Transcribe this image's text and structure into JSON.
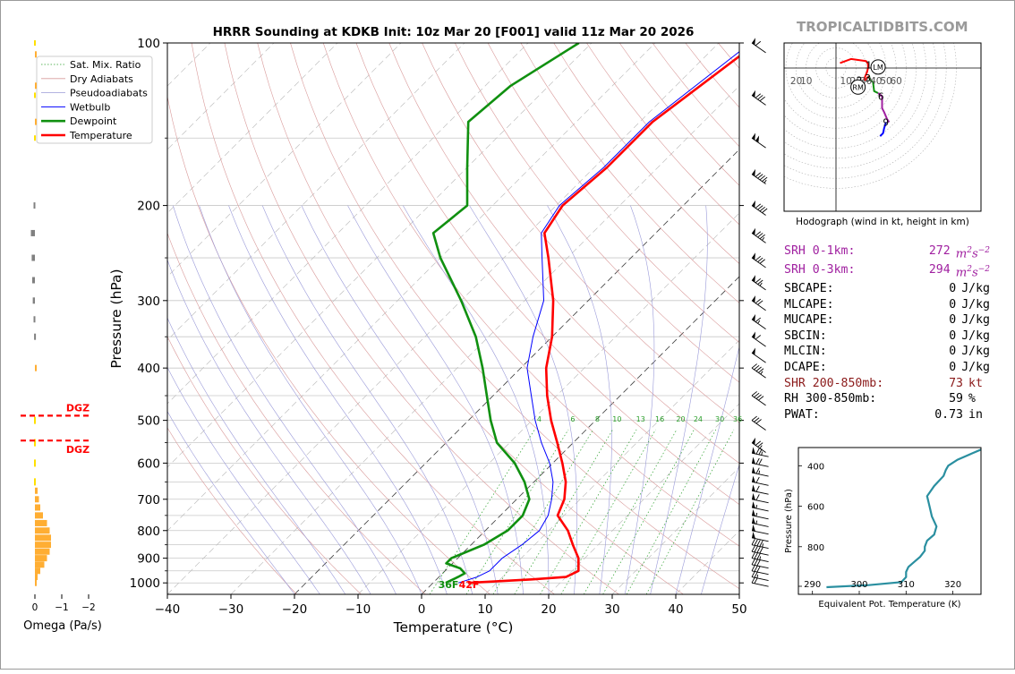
{
  "branding": "TROPICALTIDBITS.COM",
  "chart_data": {
    "type": "skew-t",
    "title": "HRRR Sounding at KDKB Init: 10z Mar 20 [F001] valid 11z Mar 20 2026",
    "xlabel": "Temperature (°C)",
    "ylabel": "Pressure (hPa)",
    "xlim": [
      -40,
      50
    ],
    "ylim": [
      1050,
      100
    ],
    "log_y": true,
    "x_ticks": [
      -40,
      -30,
      -20,
      -10,
      0,
      10,
      20,
      30,
      40,
      50
    ],
    "x_tick_labels": [
      "−40",
      "−30",
      "−20",
      "−10",
      "0",
      "10",
      "20",
      "30",
      "40",
      "50"
    ],
    "y_ticks": [
      100,
      200,
      300,
      400,
      500,
      600,
      700,
      800,
      900,
      1000
    ],
    "y_tick_labels": [
      "100",
      "200",
      "300",
      "400",
      "500",
      "600",
      "700",
      "800",
      "900",
      "1000"
    ],
    "legend": {
      "position": "top-left",
      "entries": [
        {
          "label": "Sat. Mix. Ratio",
          "color": "#2ca02c",
          "style": "dotted"
        },
        {
          "label": "Dry Adiabats",
          "color": "#d79a9a",
          "style": "solid"
        },
        {
          "label": "Pseudoadiabats",
          "color": "#9a9ad7",
          "style": "solid"
        },
        {
          "label": "Wetbulb",
          "color": "#0000ff",
          "style": "solid"
        },
        {
          "label": "Dewpoint",
          "color": "#109010",
          "style": "solid"
        },
        {
          "label": "Temperature",
          "color": "#ff0000",
          "style": "solid"
        }
      ]
    },
    "mixing_ratio_labels": [
      "4",
      "6",
      "8",
      "10",
      "13",
      "16",
      "20",
      "24",
      "30",
      "36"
    ],
    "mixing_ratio_values": [
      4,
      6,
      8,
      10,
      13,
      16,
      20,
      24,
      30,
      36
    ],
    "surface_labels": {
      "dewpoint": "36F",
      "temperature": "42F"
    },
    "series": [
      {
        "name": "Temperature",
        "color": "#ff0000",
        "points": [
          [
            1000,
            5.5
          ],
          [
            985,
            15
          ],
          [
            975,
            20
          ],
          [
            950,
            21
          ],
          [
            900,
            19
          ],
          [
            850,
            16
          ],
          [
            800,
            13
          ],
          [
            750,
            9
          ],
          [
            700,
            7.5
          ],
          [
            650,
            5
          ],
          [
            600,
            1.5
          ],
          [
            550,
            -2.5
          ],
          [
            500,
            -7
          ],
          [
            450,
            -11.5
          ],
          [
            400,
            -16
          ],
          [
            350,
            -20
          ],
          [
            300,
            -25.5
          ],
          [
            250,
            -33
          ],
          [
            225,
            -37.5
          ],
          [
            200,
            -39
          ],
          [
            170,
            -38
          ],
          [
            140,
            -38
          ],
          [
            100,
            -34
          ]
        ]
      },
      {
        "name": "Dewpoint",
        "color": "#109010",
        "points": [
          [
            1000,
            2
          ],
          [
            975,
            3
          ],
          [
            960,
            3.5
          ],
          [
            940,
            2
          ],
          [
            920,
            -1
          ],
          [
            900,
            -1
          ],
          [
            850,
            2
          ],
          [
            800,
            3.5
          ],
          [
            750,
            3.5
          ],
          [
            700,
            2
          ],
          [
            650,
            -1.5
          ],
          [
            600,
            -6
          ],
          [
            550,
            -12
          ],
          [
            500,
            -16.5
          ],
          [
            450,
            -21
          ],
          [
            400,
            -26
          ],
          [
            350,
            -32
          ],
          [
            300,
            -40
          ],
          [
            250,
            -50
          ],
          [
            225,
            -55
          ],
          [
            200,
            -54
          ],
          [
            170,
            -60
          ],
          [
            140,
            -67
          ],
          [
            120,
            -66
          ],
          [
            100,
            -62
          ]
        ]
      },
      {
        "name": "Wetbulb",
        "color": "#0000ff",
        "points": [
          [
            1000,
            4
          ],
          [
            975,
            6
          ],
          [
            950,
            7
          ],
          [
            900,
            7
          ],
          [
            850,
            8
          ],
          [
            800,
            8.5
          ],
          [
            750,
            7.5
          ],
          [
            700,
            5.5
          ],
          [
            650,
            3
          ],
          [
            600,
            -0.5
          ],
          [
            550,
            -5
          ],
          [
            500,
            -9.5
          ],
          [
            450,
            -14
          ],
          [
            400,
            -19
          ],
          [
            350,
            -23
          ],
          [
            300,
            -27
          ],
          [
            250,
            -34
          ],
          [
            225,
            -38
          ],
          [
            200,
            -39.5
          ],
          [
            170,
            -38.5
          ],
          [
            140,
            -38.5
          ],
          [
            100,
            -35
          ]
        ]
      }
    ],
    "wind_barbs_kt": [
      [
        1000,
        20
      ],
      [
        975,
        25
      ],
      [
        950,
        30
      ],
      [
        925,
        30
      ],
      [
        900,
        35
      ],
      [
        875,
        40
      ],
      [
        850,
        45
      ],
      [
        825,
        50
      ],
      [
        800,
        50
      ],
      [
        775,
        55
      ],
      [
        750,
        55
      ],
      [
        725,
        55
      ],
      [
        700,
        60
      ],
      [
        675,
        60
      ],
      [
        650,
        60
      ],
      [
        625,
        65
      ],
      [
        600,
        70
      ],
      [
        575,
        75
      ],
      [
        550,
        75
      ],
      [
        500,
        30
      ],
      [
        450,
        40
      ],
      [
        400,
        45
      ],
      [
        375,
        50
      ],
      [
        350,
        60
      ],
      [
        325,
        65
      ],
      [
        300,
        70
      ],
      [
        275,
        75
      ],
      [
        250,
        80
      ],
      [
        225,
        85
      ],
      [
        200,
        90
      ],
      [
        175,
        95
      ],
      [
        150,
        100
      ],
      [
        125,
        80
      ],
      [
        100,
        60
      ]
    ],
    "omega_panel": {
      "xlabel": "Omega (Pa/s)",
      "x_ticks": [
        0,
        -1,
        -2
      ],
      "x_tick_labels": [
        "0",
        "−1",
        "−2"
      ],
      "dgz_label": "DGZ",
      "dgz_bounds_hpa": [
        490,
        545
      ],
      "bars": [
        [
          1000,
          -0.05
        ],
        [
          975,
          -0.1
        ],
        [
          950,
          -0.2
        ],
        [
          925,
          -0.35
        ],
        [
          900,
          -0.45
        ],
        [
          875,
          -0.55
        ],
        [
          850,
          -0.6
        ],
        [
          825,
          -0.6
        ],
        [
          800,
          -0.55
        ],
        [
          775,
          -0.45
        ],
        [
          750,
          -0.3
        ],
        [
          725,
          -0.2
        ],
        [
          700,
          -0.15
        ],
        [
          675,
          -0.1
        ],
        [
          650,
          -0.05
        ],
        [
          600,
          -0.03
        ],
        [
          550,
          -0.03
        ],
        [
          500,
          -0.05
        ],
        [
          400,
          -0.03
        ],
        [
          350,
          0.03
        ],
        [
          325,
          0.05
        ],
        [
          300,
          0.08
        ],
        [
          275,
          0.1
        ],
        [
          250,
          0.12
        ],
        [
          225,
          0.15
        ],
        [
          200,
          0.05
        ],
        [
          140,
          -0.05
        ],
        [
          120,
          -0.05
        ],
        [
          105,
          -0.03
        ]
      ]
    },
    "hodograph": {
      "caption": "Hodograph (wind in kt, height in km)",
      "ring_labels": [
        "10",
        "20",
        "30",
        "40",
        "50",
        "60"
      ],
      "ring_labels_left": [
        "20",
        "10"
      ],
      "ring_values": [
        10,
        20,
        30,
        40,
        50,
        60
      ],
      "height_labels": [
        "1",
        "2",
        "3",
        "6",
        "9"
      ],
      "storm_motion_labels": [
        "LM",
        "RM"
      ],
      "storm_motion_uv": {
        "LM": [
          42,
          1
        ],
        "RM": [
          22,
          -19
        ]
      },
      "segments": [
        {
          "color": "#ff0000",
          "points": [
            [
              4,
              5
            ],
            [
              15,
              9
            ],
            [
              30,
              7
            ],
            [
              32,
              4
            ],
            [
              32,
              0
            ],
            [
              31,
              -4
            ],
            [
              28,
              -11
            ],
            [
              29,
              -12
            ],
            [
              31,
              -10
            ],
            [
              33,
              -8
            ]
          ]
        },
        {
          "color": "#109010",
          "points": [
            [
              33,
              -8
            ],
            [
              34,
              -12
            ],
            [
              37,
              -14
            ],
            [
              38,
              -23
            ],
            [
              42,
              -25
            ]
          ]
        },
        {
          "color": "#a020a0",
          "points": [
            [
              42,
              -25
            ],
            [
              46,
              -28
            ],
            [
              46,
              -40
            ],
            [
              48,
              -44
            ],
            [
              51,
              -51
            ],
            [
              53,
              -54
            ]
          ]
        },
        {
          "color": "#0000ff",
          "points": [
            [
              50,
              -54
            ],
            [
              48,
              -60
            ],
            [
              47,
              -65
            ],
            [
              44,
              -68
            ]
          ]
        }
      ]
    },
    "theta_e_panel": {
      "xlabel": "Equivalent Pot. Temperature (K)",
      "ylabel": "Pressure (hPa)",
      "x_ticks": [
        290,
        300,
        310,
        320
      ],
      "x_tick_labels": [
        "290",
        "300",
        "310",
        "320"
      ],
      "y_ticks": [
        400,
        600,
        800
      ],
      "y_tick_labels": [
        "400",
        "600",
        "800"
      ],
      "xlim": [
        287,
        326
      ],
      "ylim": [
        1000,
        310
      ],
      "color": "#2a8fa0",
      "points": [
        [
          1000,
          293
        ],
        [
          990,
          302
        ],
        [
          975,
          309
        ],
        [
          950,
          310
        ],
        [
          925,
          310
        ],
        [
          900,
          310.5
        ],
        [
          870,
          312
        ],
        [
          850,
          313
        ],
        [
          820,
          314
        ],
        [
          800,
          314
        ],
        [
          770,
          314.5
        ],
        [
          740,
          316
        ],
        [
          700,
          316.5
        ],
        [
          650,
          315.5
        ],
        [
          600,
          315
        ],
        [
          550,
          314.5
        ],
        [
          500,
          316
        ],
        [
          450,
          318
        ],
        [
          420,
          318.5
        ],
        [
          400,
          319
        ],
        [
          370,
          321
        ],
        [
          340,
          324
        ],
        [
          320,
          326
        ]
      ]
    },
    "indices": [
      {
        "key": "SRH 0-1km:",
        "value": "272",
        "unit_base": "m",
        "unit_sup1": "2",
        "unit_mid": "s",
        "unit_sup2": "−2",
        "color": "#a020a0"
      },
      {
        "key": "SRH 0-3km:",
        "value": "294",
        "unit_base": "m",
        "unit_sup1": "2",
        "unit_mid": "s",
        "unit_sup2": "−2",
        "color": "#a020a0"
      },
      {
        "key": "SBCAPE:",
        "value": "0",
        "unit": "J/kg",
        "color": "#000000"
      },
      {
        "key": "MLCAPE:",
        "value": "0",
        "unit": "J/kg",
        "color": "#000000"
      },
      {
        "key": "MUCAPE:",
        "value": "0",
        "unit": "J/kg",
        "color": "#000000"
      },
      {
        "key": "SBCIN:",
        "value": "0",
        "unit": "J/kg",
        "color": "#000000"
      },
      {
        "key": "MLCIN:",
        "value": "0",
        "unit": "J/kg",
        "color": "#000000"
      },
      {
        "key": "DCAPE:",
        "value": "0",
        "unit": "J/kg",
        "color": "#000000"
      },
      {
        "key": "SHR 200-850mb:",
        "value": "73",
        "unit": "kt",
        "color": "#8b1a1a"
      },
      {
        "key": "RH 300-850mb:",
        "value": "59",
        "unit": "%",
        "color": "#000000"
      },
      {
        "key": "PWAT:",
        "value": "0.73",
        "unit": "in",
        "color": "#000000"
      }
    ]
  }
}
